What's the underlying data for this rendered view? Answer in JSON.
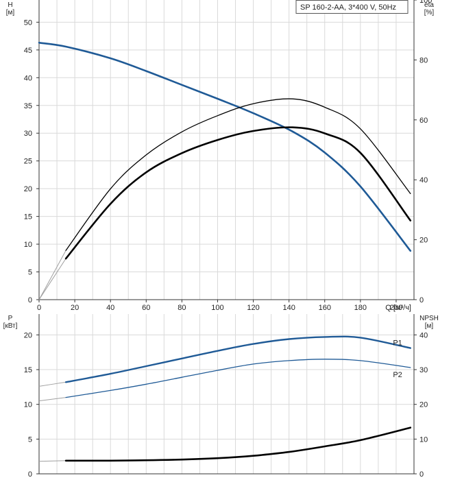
{
  "colors": {
    "blue": "#1f5a96",
    "black": "#000000",
    "grid": "#d9d9d9",
    "light_line": "#b0b0b0"
  },
  "chart_data": [
    {
      "type": "line",
      "title": "",
      "legend_box": "SP 160-2-AA, 3*400 V, 50Hz",
      "legend_placement": "top-right",
      "grid": true,
      "x_axis": {
        "label": "Q [м³/ч]",
        "range": [
          0,
          210
        ],
        "ticks": [
          0,
          20,
          40,
          60,
          80,
          100,
          120,
          140,
          160,
          180,
          200
        ]
      },
      "y_axis_left": {
        "label": "H",
        "unit": "[м]",
        "range": [
          0,
          54
        ],
        "ticks": [
          0,
          5,
          10,
          15,
          20,
          25,
          30,
          35,
          40,
          45,
          50
        ]
      },
      "y_axis_right": {
        "label": "eta",
        "unit": "[%]",
        "range": [
          0,
          100
        ],
        "ticks": [
          0,
          20,
          40,
          60,
          80,
          100
        ]
      },
      "series": [
        {
          "id": "H",
          "color": "#1f5a96",
          "width": 2.6,
          "axis": "left",
          "x": [
            0,
            15,
            40,
            60,
            80,
            100,
            120,
            142,
            160,
            180,
            208
          ],
          "y": [
            46.3,
            45.6,
            43.5,
            41.2,
            38.7,
            36.2,
            33.6,
            30.3,
            26.5,
            20.4,
            8.8
          ],
          "extension": {
            "x": [
              0,
              15
            ],
            "y": [
              46.3,
              45.6
            ]
          }
        },
        {
          "id": "eta-1",
          "color": "#000000",
          "width": 1.3,
          "axis": "right",
          "x": [
            15,
            40,
            60,
            80,
            100,
            120,
            142,
            160,
            180,
            208
          ],
          "y": [
            16.4,
            37.0,
            48.3,
            56.0,
            61.4,
            65.4,
            67.0,
            64.2,
            57.0,
            35.4
          ],
          "extension": {
            "x": [
              0,
              15
            ],
            "y": [
              0,
              16.4
            ]
          }
        },
        {
          "id": "eta-2",
          "color": "#000000",
          "width": 2.6,
          "axis": "right",
          "x": [
            15,
            40,
            60,
            80,
            100,
            120,
            142,
            160,
            180,
            208
          ],
          "y": [
            13.7,
            32.0,
            42.5,
            48.9,
            53.3,
            56.3,
            57.5,
            55.5,
            49.0,
            26.4
          ],
          "extension": {
            "x": [
              0,
              15
            ],
            "y": [
              0,
              13.7
            ]
          }
        }
      ]
    },
    {
      "type": "line",
      "title": "",
      "grid": true,
      "x_axis": {
        "label": "",
        "range": [
          0,
          210
        ],
        "ticks": []
      },
      "y_axis_left": {
        "label": "P",
        "unit": "[кВт]",
        "range": [
          0,
          23
        ],
        "ticks": [
          0,
          5,
          10,
          15,
          20
        ]
      },
      "y_axis_right": {
        "label": "NPSH",
        "unit": "[м]",
        "range": [
          0,
          46
        ],
        "ticks": [
          0,
          10,
          20,
          30,
          40
        ]
      },
      "series": [
        {
          "id": "P1",
          "name": "P1",
          "color": "#1f5a96",
          "width": 2.4,
          "axis": "left",
          "x": [
            15,
            40,
            60,
            80,
            100,
            120,
            140,
            160,
            180,
            208
          ],
          "y": [
            13.2,
            14.4,
            15.5,
            16.6,
            17.7,
            18.7,
            19.4,
            19.7,
            19.6,
            18.1
          ],
          "extension": {
            "x": [
              0,
              15
            ],
            "y": [
              12.6,
              13.2
            ]
          }
        },
        {
          "id": "P2",
          "name": "P2",
          "color": "#1f5a96",
          "width": 1.3,
          "axis": "left",
          "x": [
            15,
            40,
            60,
            80,
            100,
            120,
            140,
            160,
            180,
            208
          ],
          "y": [
            11.0,
            12.0,
            12.9,
            13.9,
            14.9,
            15.8,
            16.3,
            16.5,
            16.3,
            15.3
          ],
          "extension": {
            "x": [
              0,
              15
            ],
            "y": [
              10.5,
              11.0
            ]
          }
        },
        {
          "id": "NPSH",
          "color": "#000000",
          "width": 2.6,
          "axis": "right",
          "x": [
            15,
            40,
            60,
            80,
            100,
            120,
            140,
            160,
            180,
            208
          ],
          "y": [
            3.8,
            3.8,
            3.9,
            4.1,
            4.5,
            5.2,
            6.3,
            7.9,
            9.7,
            13.3
          ],
          "extension": {
            "x": [
              0,
              15
            ],
            "y": [
              3.6,
              3.8
            ]
          }
        }
      ]
    }
  ]
}
